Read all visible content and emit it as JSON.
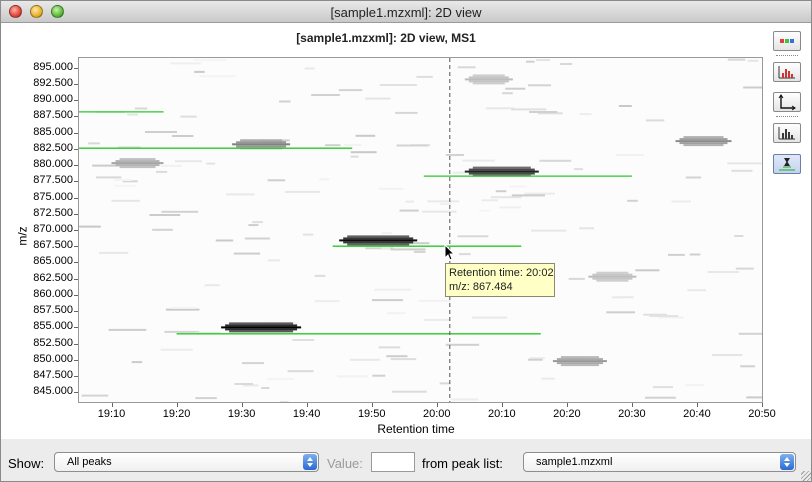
{
  "window": {
    "title": "[sample1.mzxml]: 2D view"
  },
  "plot": {
    "title": "[sample1.mzxml]: 2D view, MS1",
    "y_axis_label": "m/z",
    "x_axis_label": "Retention time",
    "y_ticks": [
      "895.000",
      "892.500",
      "890.000",
      "887.500",
      "885.000",
      "882.500",
      "880.000",
      "877.500",
      "875.000",
      "872.500",
      "870.000",
      "867.500",
      "865.000",
      "862.500",
      "860.000",
      "857.500",
      "855.000",
      "852.500",
      "850.000",
      "847.500",
      "845.000"
    ],
    "x_ticks": [
      "19:10",
      "19:20",
      "19:30",
      "19:40",
      "19:50",
      "20:00",
      "20:10",
      "20:20",
      "20:30",
      "20:40",
      "20:50"
    ],
    "colors": {
      "peak_line": "#27c927",
      "crosshair": "#555555",
      "tooltip_bg": "#ffffc6"
    }
  },
  "tooltip": {
    "line1": "Retention time: 20:02",
    "line2": "m/z: 867.484"
  },
  "toolbar": {
    "buttons": [
      "palette-icon",
      "peak-histogram-icon",
      "axes-icon",
      "bar-chart-icon",
      "show-peaks-icon"
    ]
  },
  "controls": {
    "show_label": "Show:",
    "show_value": "All peaks",
    "value_label": "Value:",
    "value_input": "",
    "from_label": "from peak list:",
    "peak_list_value": "sample1.mzxml"
  },
  "chart_data": {
    "type": "heatmap",
    "title": "[sample1.mzxml]: 2D view, MS1",
    "xlabel": "Retention time",
    "ylabel": "m/z",
    "x_range": [
      "19:05",
      "20:50"
    ],
    "y_range": [
      843.5,
      896.5
    ],
    "x_ticks": [
      "19:10",
      "19:20",
      "19:30",
      "19:40",
      "19:50",
      "20:00",
      "20:10",
      "20:20",
      "20:30",
      "20:40",
      "20:50"
    ],
    "y_ticks": [
      845.0,
      847.5,
      850.0,
      852.5,
      855.0,
      857.5,
      860.0,
      862.5,
      865.0,
      867.5,
      870.0,
      872.5,
      875.0,
      877.5,
      880.0,
      882.5,
      885.0,
      887.5,
      890.0,
      892.5,
      895.0
    ],
    "crosshair_rt": "20:02",
    "peaks": [
      {
        "mz": 888.2,
        "rt_start": "19:05",
        "rt_end": "19:18"
      },
      {
        "mz": 882.6,
        "rt_start": "19:05",
        "rt_end": "19:47"
      },
      {
        "mz": 878.3,
        "rt_start": "19:58",
        "rt_end": "20:30"
      },
      {
        "mz": 867.5,
        "rt_start": "19:44",
        "rt_end": "20:13"
      },
      {
        "mz": 854.0,
        "rt_start": "19:20",
        "rt_end": "20:16"
      }
    ],
    "spots": [
      {
        "mz": 883.2,
        "rt": "19:33",
        "intensity": 0.45
      },
      {
        "mz": 879.0,
        "rt": "20:10",
        "intensity": 0.85
      },
      {
        "mz": 868.4,
        "rt": "19:51",
        "intensity": 0.95
      },
      {
        "mz": 855.0,
        "rt": "19:33",
        "intensity": 1.0
      },
      {
        "mz": 849.8,
        "rt": "20:22",
        "intensity": 0.35
      },
      {
        "mz": 883.7,
        "rt": "20:41",
        "intensity": 0.4
      },
      {
        "mz": 880.3,
        "rt": "19:14",
        "intensity": 0.3
      },
      {
        "mz": 893.2,
        "rt": "20:08",
        "intensity": 0.2
      },
      {
        "mz": 862.8,
        "rt": "20:27",
        "intensity": 0.2
      }
    ]
  }
}
